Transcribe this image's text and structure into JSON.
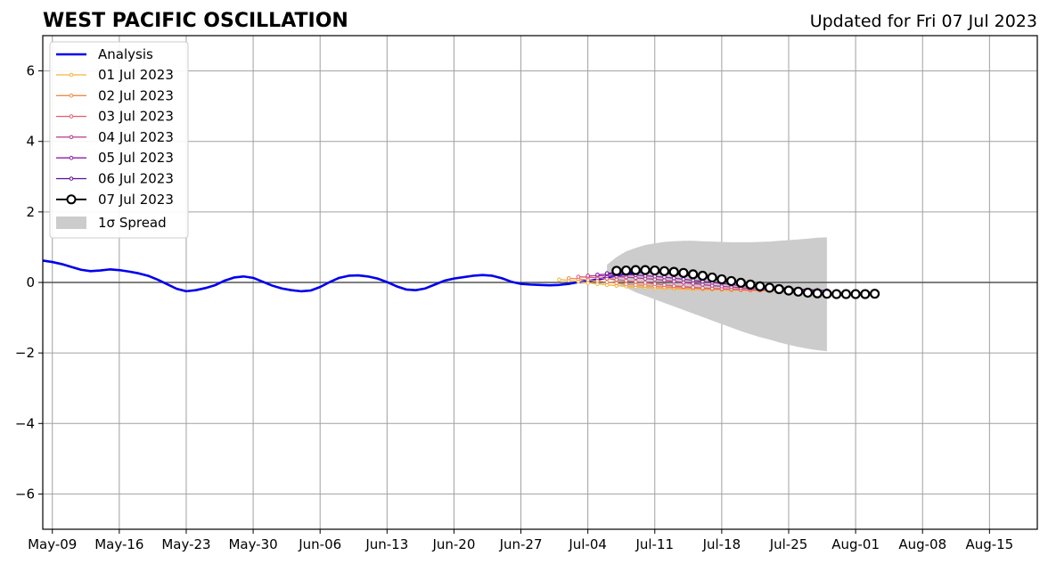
{
  "chart_data": {
    "type": "line",
    "title": "WEST PACIFIC OSCILLATION",
    "subtitle": "Updated for Fri 07 Jul 2023",
    "xlabel": "",
    "ylabel": "",
    "x_start": "2023-05-08",
    "xlim_days": [
      0,
      104
    ],
    "xticks": [
      {
        "label": "May-09",
        "day": 1
      },
      {
        "label": "May-16",
        "day": 8
      },
      {
        "label": "May-23",
        "day": 15
      },
      {
        "label": "May-30",
        "day": 22
      },
      {
        "label": "Jun-06",
        "day": 29
      },
      {
        "label": "Jun-13",
        "day": 36
      },
      {
        "label": "Jun-20",
        "day": 43
      },
      {
        "label": "Jun-27",
        "day": 50
      },
      {
        "label": "Jul-04",
        "day": 57
      },
      {
        "label": "Jul-11",
        "day": 64
      },
      {
        "label": "Jul-18",
        "day": 71
      },
      {
        "label": "Jul-25",
        "day": 78
      },
      {
        "label": "Aug-01",
        "day": 85
      },
      {
        "label": "Aug-08",
        "day": 92
      },
      {
        "label": "Aug-15",
        "day": 99
      }
    ],
    "ylim": [
      -7,
      7
    ],
    "yticks": [
      {
        "label": "6",
        "value": 6
      },
      {
        "label": "4",
        "value": 4
      },
      {
        "label": "2",
        "value": 2
      },
      {
        "label": "0",
        "value": 0
      },
      {
        "label": "−2",
        "value": -2
      },
      {
        "label": "−4",
        "value": -4
      },
      {
        "label": "−6",
        "value": -6
      }
    ],
    "grid": true,
    "legend_position": "top-left",
    "spread_label": "1σ Spread",
    "spread_color": "#cccccc",
    "analysis": {
      "name": "Analysis",
      "color": "#0000ee",
      "start_day": 0,
      "values": [
        0.62,
        0.58,
        0.52,
        0.44,
        0.36,
        0.32,
        0.34,
        0.37,
        0.35,
        0.31,
        0.26,
        0.19,
        0.08,
        -0.05,
        -0.18,
        -0.25,
        -0.22,
        -0.16,
        -0.08,
        0.05,
        0.14,
        0.17,
        0.13,
        0.02,
        -0.09,
        -0.17,
        -0.22,
        -0.25,
        -0.23,
        -0.13,
        0.01,
        0.13,
        0.19,
        0.2,
        0.17,
        0.11,
        0.01,
        -0.11,
        -0.2,
        -0.22,
        -0.17,
        -0.06,
        0.05,
        0.11,
        0.15,
        0.19,
        0.21,
        0.19,
        0.12,
        0.02,
        -0.04,
        -0.06,
        -0.07,
        -0.08,
        -0.07,
        -0.04,
        0.01,
        0.04,
        0.08,
        0.14,
        0.2,
        0.24,
        0.27,
        0.33,
        0.4
      ]
    },
    "spread": {
      "start_day": 59,
      "upper": [
        0.5,
        0.72,
        0.88,
        0.98,
        1.06,
        1.11,
        1.15,
        1.17,
        1.18,
        1.18,
        1.17,
        1.16,
        1.15,
        1.14,
        1.14,
        1.14,
        1.15,
        1.16,
        1.18,
        1.2,
        1.22,
        1.24,
        1.27,
        1.28
      ],
      "lower": [
        0.15,
        -0.02,
        -0.15,
        -0.28,
        -0.38,
        -0.48,
        -0.58,
        -0.68,
        -0.78,
        -0.88,
        -0.98,
        -1.08,
        -1.18,
        -1.28,
        -1.38,
        -1.47,
        -1.55,
        -1.62,
        -1.7,
        -1.77,
        -1.83,
        -1.88,
        -1.92,
        -1.95
      ]
    },
    "forecasts": [
      {
        "name": "01 Jul 2023",
        "color": "#f4b43c",
        "start_day": 54,
        "values": [
          0.08,
          0.06,
          0.03,
          -0.01,
          -0.04,
          -0.07,
          -0.09,
          -0.11,
          -0.13,
          -0.14,
          -0.16,
          -0.17,
          -0.18,
          -0.19,
          -0.2,
          -0.2,
          -0.21,
          -0.21,
          -0.22,
          -0.22,
          -0.23,
          -0.23,
          -0.24,
          -0.24
        ]
      },
      {
        "name": "02 Jul 2023",
        "color": "#f08a4b",
        "start_day": 55,
        "values": [
          0.12,
          0.1,
          0.07,
          0.04,
          0.01,
          -0.02,
          -0.05,
          -0.07,
          -0.09,
          -0.11,
          -0.13,
          -0.14,
          -0.15,
          -0.16,
          -0.17,
          -0.18,
          -0.19,
          -0.2,
          -0.21,
          -0.22,
          -0.23,
          -0.23,
          -0.24,
          -0.24
        ]
      },
      {
        "name": "03 Jul 2023",
        "color": "#e15a6e",
        "start_day": 56,
        "values": [
          0.16,
          0.15,
          0.13,
          0.11,
          0.08,
          0.05,
          0.02,
          -0.01,
          -0.04,
          -0.07,
          -0.1,
          -0.12,
          -0.14,
          -0.16,
          -0.17,
          -0.18,
          -0.19,
          -0.2,
          -0.21,
          -0.22,
          -0.22,
          -0.23,
          -0.23,
          -0.24
        ]
      },
      {
        "name": "04 Jul 2023",
        "color": "#b4378c",
        "start_day": 57,
        "values": [
          0.19,
          0.19,
          0.18,
          0.17,
          0.15,
          0.13,
          0.11,
          0.09,
          0.06,
          0.03,
          0.0,
          -0.03,
          -0.06,
          -0.09,
          -0.11,
          -0.13,
          -0.15,
          -0.17,
          -0.18,
          -0.19,
          -0.2,
          -0.21,
          -0.22,
          -0.23
        ]
      },
      {
        "name": "05 Jul 2023",
        "color": "#8c1ea5",
        "start_day": 58,
        "values": [
          0.22,
          0.23,
          0.23,
          0.22,
          0.21,
          0.19,
          0.17,
          0.15,
          0.12,
          0.09,
          0.06,
          0.03,
          0.0,
          -0.03,
          -0.06,
          -0.09,
          -0.11,
          -0.13,
          -0.15,
          -0.17,
          -0.19,
          -0.2,
          -0.21,
          -0.22
        ]
      },
      {
        "name": "06 Jul 2023",
        "color": "#5a0f96",
        "start_day": 59,
        "values": [
          0.26,
          0.28,
          0.29,
          0.3,
          0.29,
          0.28,
          0.26,
          0.24,
          0.21,
          0.18,
          0.15,
          0.11,
          0.07,
          0.03,
          -0.01,
          -0.05,
          -0.08,
          -0.11,
          -0.14,
          -0.17,
          -0.19,
          -0.21,
          -0.22,
          -0.23
        ]
      },
      {
        "name": "07 Jul 2023",
        "color": "#000000",
        "start_day": 60,
        "values": [
          0.33,
          0.34,
          0.35,
          0.35,
          0.34,
          0.32,
          0.3,
          0.27,
          0.23,
          0.19,
          0.14,
          0.09,
          0.04,
          -0.01,
          -0.06,
          -0.11,
          -0.15,
          -0.19,
          -0.23,
          -0.26,
          -0.29,
          -0.31,
          -0.32,
          -0.33,
          -0.33,
          -0.33,
          -0.33,
          -0.32
        ]
      }
    ]
  }
}
